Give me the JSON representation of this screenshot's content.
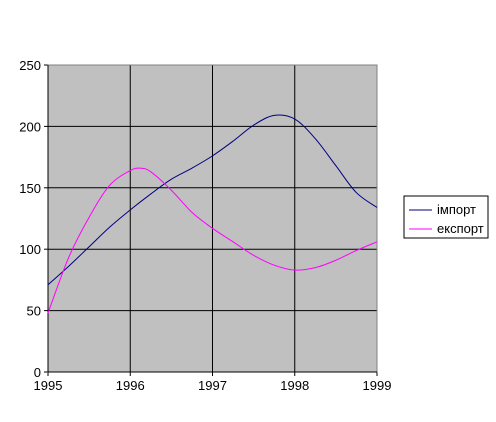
{
  "chart_data": {
    "type": "line",
    "title": "",
    "xlabel": "",
    "ylabel": "",
    "xlim": [
      1995,
      1999
    ],
    "ylim": [
      0,
      250
    ],
    "x_ticks": [
      "1995",
      "1996",
      "1997",
      "1998",
      "1999"
    ],
    "y_ticks": [
      "0",
      "50",
      "100",
      "150",
      "200",
      "250"
    ],
    "grid": true,
    "plot_background": "#C0C0C0",
    "legend_position": "right",
    "series": [
      {
        "name": "імпорт",
        "color": "#000080",
        "x": [
          1995,
          1995.25,
          1995.5,
          1995.75,
          1996,
          1996.25,
          1996.5,
          1996.75,
          1997,
          1997.25,
          1997.5,
          1997.75,
          1998,
          1998.25,
          1998.5,
          1998.75,
          1999
        ],
        "values": [
          71,
          86,
          102,
          118,
          132,
          145,
          157,
          166,
          176,
          188,
          201,
          209,
          206,
          190,
          168,
          146,
          134
        ]
      },
      {
        "name": "експорт",
        "color": "#FF00FF",
        "x": [
          1995,
          1995.25,
          1995.5,
          1995.75,
          1996,
          1996.125,
          1996.25,
          1996.5,
          1996.75,
          1997,
          1997.25,
          1997.5,
          1997.75,
          1998,
          1998.25,
          1998.5,
          1998.75,
          1999
        ],
        "values": [
          48,
          93,
          126,
          152,
          164,
          166,
          163,
          148,
          130,
          117,
          106,
          95,
          87,
          83,
          85,
          91,
          99,
          106
        ]
      }
    ]
  }
}
